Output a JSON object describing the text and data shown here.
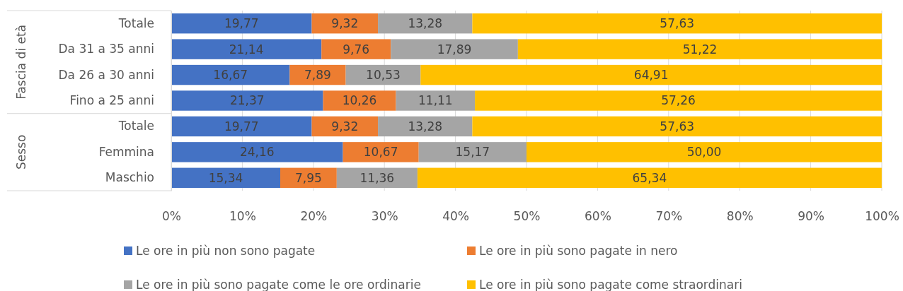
{
  "chart_data": {
    "type": "bar",
    "orientation": "horizontal",
    "stacked": true,
    "categories": [
      "Totale",
      "Da 31 a 35 anni",
      "Da 26 a 30 anni",
      "Fino a 25 anni",
      "Totale",
      "Femmina",
      "Maschio"
    ],
    "series": [
      {
        "name": "Le ore in più non sono pagate",
        "color": "#4472c4",
        "values": [
          19.77,
          21.14,
          16.67,
          21.37,
          19.77,
          24.16,
          15.34
        ],
        "value_labels": [
          "19,77",
          "21,14",
          "16,67",
          "21,37",
          "19,77",
          "24,16",
          "15,34"
        ]
      },
      {
        "name": "Le ore in più sono pagate in nero",
        "color": "#ed7d31",
        "values": [
          9.32,
          9.76,
          7.89,
          10.26,
          9.32,
          10.67,
          7.95
        ],
        "value_labels": [
          "9,32",
          "9,76",
          "7,89",
          "10,26",
          "9,32",
          "10,67",
          "7,95"
        ]
      },
      {
        "name": "Le ore in più sono pagate come le ore ordinarie",
        "color": "#a5a5a5",
        "values": [
          13.28,
          17.89,
          10.53,
          11.11,
          13.28,
          15.17,
          11.36
        ],
        "value_labels": [
          "13,28",
          "17,89",
          "10,53",
          "11,11",
          "13,28",
          "15,17",
          "11,36"
        ]
      },
      {
        "name": "Le ore in più sono pagate come straordinari",
        "color": "#ffc000",
        "values": [
          57.63,
          51.22,
          64.91,
          57.26,
          57.63,
          50.0,
          65.34
        ],
        "value_labels": [
          "57,63",
          "51,22",
          "64,91",
          "57,26",
          "57,63",
          "50,00",
          "65,34"
        ]
      }
    ],
    "xlim": [
      0,
      100
    ],
    "xticks": [
      {
        "value": 0,
        "label": "0%"
      },
      {
        "value": 10,
        "label": "10%"
      },
      {
        "value": 20,
        "label": "20%"
      },
      {
        "value": 30,
        "label": "30%"
      },
      {
        "value": 40,
        "label": "40%"
      },
      {
        "value": 50,
        "label": "50%"
      },
      {
        "value": 60,
        "label": "60%"
      },
      {
        "value": 70,
        "label": "70%"
      },
      {
        "value": 80,
        "label": "80%"
      },
      {
        "value": 90,
        "label": "90%"
      },
      {
        "value": 100,
        "label": "100%"
      }
    ],
    "annotations": [
      "Fascia di età",
      "Sesso"
    ],
    "grid": "x",
    "legend": "bottom"
  }
}
